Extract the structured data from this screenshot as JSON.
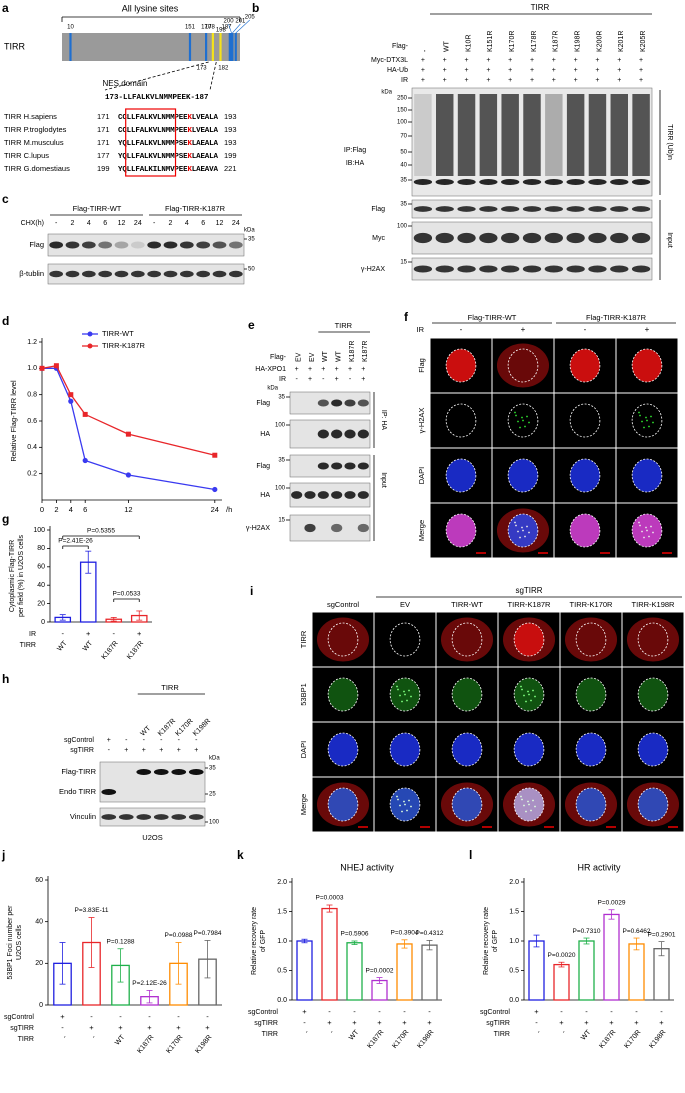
{
  "panel_a": {
    "label": "a",
    "title": "All lysine sites",
    "protein": "TIRR",
    "sites": [
      10,
      151,
      170,
      178,
      187,
      198,
      200,
      201,
      205
    ],
    "site_colors": [
      "#1f6fd0",
      "#1f6fd0",
      "#1f6fd0",
      "#f5e21a",
      "#f5e21a",
      "#1f6fd0",
      "#1f6fd0",
      "#1f6fd0",
      "#1f6fd0"
    ],
    "nes_bounds": [
      173,
      182
    ],
    "nes_label": "NES domain",
    "nes_sequence": "173-LLFALKVLNMMPEEK-187",
    "alignment": [
      {
        "species": "TIRR H.sapiens",
        "start": 171,
        "sequence": "CCLLFALKVLNMMPEEKLVEALA",
        "end": 193
      },
      {
        "species": "TIRR P.troglodytes",
        "start": 171,
        "sequence": "CCLLFALKVLNMMPEEKLVEALA",
        "end": 193
      },
      {
        "species": "TIRR M.musculus",
        "start": 171,
        "sequence": "YQLLFALKVLNMMPSEKLAEALA",
        "end": 193
      },
      {
        "species": "TIRR C.lupus",
        "start": 177,
        "sequence": "YQLLFALKVLNMMPSEKLAEALA",
        "end": 199
      },
      {
        "species": "TIRR G.domestiaus",
        "start": 199,
        "sequence": "YQLLFALKILNMVPEEKLAEAVA",
        "end": 221
      }
    ]
  },
  "panel_b": {
    "label": "b",
    "group": "TIRR",
    "row_names": [
      "Flag-",
      "Myc-DTX3L",
      "HA-Ub",
      "IR"
    ],
    "flag": [
      "-",
      "WT",
      "K10R",
      "K151R",
      "K170R",
      "K178R",
      "K187R",
      "K198R",
      "K200R",
      "K201R",
      "K205R"
    ],
    "myc": [
      "+",
      "+",
      "+",
      "+",
      "+",
      "+",
      "+",
      "+",
      "+",
      "+",
      "+"
    ],
    "ha": [
      "+",
      "+",
      "+",
      "+",
      "+",
      "+",
      "+",
      "+",
      "+",
      "+",
      "+"
    ],
    "ir": [
      "+",
      "+",
      "+",
      "+",
      "+",
      "+",
      "+",
      "+",
      "+",
      "+",
      "+"
    ],
    "kda": "kDa",
    "ip_markers": [
      250,
      150,
      100,
      70,
      50,
      40,
      35
    ],
    "ip_labels": [
      "IP:Flag",
      "IB:HA"
    ],
    "ip_side": "TIRR (Ub)n",
    "input_blots": [
      {
        "name": "Flag",
        "marker": 35
      },
      {
        "name": "Myc",
        "marker": 100
      },
      {
        "name": "γ-H2AX",
        "marker": 15
      }
    ],
    "input_side": "Input"
  },
  "panel_c": {
    "label": "c",
    "groups": [
      "Flag-TIRR-WT",
      "Flag-TIRR-K187R"
    ],
    "row_name": "CHX(h)",
    "times": [
      "-",
      "2",
      "4",
      "6",
      "12",
      "24",
      "-",
      "2",
      "4",
      "6",
      "12",
      "24"
    ],
    "kda": "kDa",
    "blots": [
      {
        "name": "Flag",
        "marker": 35
      },
      {
        "name": "β-tublin",
        "marker": 50
      }
    ]
  },
  "panel_e": {
    "label": "e",
    "group": "TIRR",
    "row_names": [
      "Flag-",
      "HA-XPO1",
      "IR"
    ],
    "flag": [
      "EV",
      "EV",
      "WT",
      "WT",
      "K187R",
      "K187R"
    ],
    "xpo1": [
      "+",
      "+",
      "+",
      "+",
      "+",
      "+"
    ],
    "ir": [
      "-",
      "+",
      "-",
      "+",
      "-",
      "+"
    ],
    "kda": "kDa",
    "blots": [
      {
        "name": "Flag",
        "marker": 35
      },
      {
        "name": "HA",
        "marker": 100
      },
      {
        "name": "Flag",
        "marker": 35
      },
      {
        "name": "HA",
        "marker": 100
      },
      {
        "name": "γ-H2AX",
        "marker": 15
      }
    ],
    "sides": [
      "IP: HA",
      "Input"
    ]
  },
  "panel_f": {
    "label": "f",
    "groups": [
      "Flag-TIRR-WT",
      "Flag-TIRR-K187R"
    ],
    "ir_name": "IR",
    "ir": [
      "-",
      "+",
      "-",
      "+"
    ],
    "rows": [
      "Flag",
      "γ-H2AX",
      "DAPI",
      "Merge"
    ]
  },
  "panel_h": {
    "label": "h",
    "group": "TIRR",
    "tirr": [
      "WT",
      "K187R",
      "K170R",
      "K198R"
    ],
    "row_names": [
      "sgControl",
      "sgTIRR"
    ],
    "sgcontrol": [
      "+",
      "-",
      "-",
      "-",
      "-",
      "-"
    ],
    "sgtirr": [
      "-",
      "+",
      "+",
      "+",
      "+",
      "+"
    ],
    "kda": "kDa",
    "blots": [
      {
        "names": [
          "Flag-TIRR",
          "Endo TIRR"
        ],
        "markers": [
          35,
          25
        ]
      },
      {
        "names": [
          "Vinculin"
        ],
        "markers": [
          100
        ]
      }
    ],
    "cell_line": "U2OS"
  },
  "panel_i": {
    "label": "i",
    "group": "sgTIRR",
    "columns": [
      "sgControl",
      "EV",
      "TIRR-WT",
      "TIRR-K187R",
      "TIRR-K170R",
      "TIRR-K198R"
    ],
    "rows": [
      "TIRR",
      "53BP1",
      "DAPI",
      "Merge"
    ]
  },
  "chart_data": [
    {
      "panel": "d",
      "type": "line",
      "ylabel": "Relative Flag-TIRR level",
      "xlabel": "/h",
      "x": [
        0,
        2,
        4,
        6,
        12,
        24
      ],
      "series": [
        {
          "name": "TIRR-WT",
          "color": "#3a3af0",
          "values": [
            1.0,
            1.0,
            0.75,
            0.3,
            0.19,
            0.08
          ]
        },
        {
          "name": "TIRR-K187R",
          "color": "#e8262a",
          "values": [
            1.0,
            1.02,
            0.8,
            0.65,
            0.5,
            0.34
          ]
        }
      ],
      "xlim": [
        0,
        25
      ],
      "xticks": [
        0,
        2,
        4,
        6,
        12,
        24
      ],
      "ylim": [
        0,
        1.2
      ],
      "yticks": [
        0.2,
        0.4,
        0.6,
        0.8,
        {
          "value": 1,
          "label": "1.0"
        },
        1.2
      ],
      "legend": "upper-left"
    },
    {
      "panel": "g",
      "type": "bar",
      "ylabel": [
        "Cytoplasmic Flag-TIRR",
        "per field (%) in U2OS cells"
      ],
      "category_rows": [
        {
          "name": "IR",
          "labels": [
            "-",
            "+",
            "-",
            "+"
          ]
        },
        {
          "name": "TIRR",
          "labels": [
            "WT",
            "WT",
            "K187R",
            "K187R"
          ]
        }
      ],
      "values": [
        5,
        65,
        3,
        7
      ],
      "errors": [
        3,
        12,
        2,
        5
      ],
      "colors": [
        "#1f1fe0",
        "#1f1fe0",
        "#e8262a",
        "#e8262a"
      ],
      "comparisons": [
        "P=0.5355",
        "P=2.41E-26",
        "P=0.0533"
      ],
      "ylim": [
        0,
        100
      ],
      "yticks": [
        0,
        20,
        40,
        60,
        80,
        100
      ]
    },
    {
      "panel": "j",
      "type": "bar",
      "ylabel": [
        "53BP1 Foci number per",
        "U2OS cells"
      ],
      "category_rows": [
        {
          "name": "sgControl",
          "labels": [
            "+",
            "-",
            "-",
            "-",
            "-",
            "-"
          ]
        },
        {
          "name": "sgTIRR",
          "labels": [
            "-",
            "+",
            "+",
            "+",
            "+",
            "+"
          ]
        },
        {
          "name": "TIRR",
          "labels": [
            "-",
            "-",
            "WT",
            "K187R",
            "K170R",
            "K198R"
          ]
        }
      ],
      "values": [
        20,
        30,
        19,
        4,
        20,
        22
      ],
      "errors": [
        10,
        12,
        8,
        3,
        10,
        9
      ],
      "colors": [
        "#1f1fe0",
        "#e8262a",
        "#1fb04a",
        "#b030d0",
        "#ff8c00",
        "#666666"
      ],
      "annotations": [
        null,
        "P=3.83E-11",
        "P=0.1288",
        "P=2.12E-26",
        "P=0.0988",
        "P=0.7984"
      ],
      "ylim": [
        0,
        60
      ],
      "yticks": [
        0,
        20,
        40,
        60
      ]
    },
    {
      "panel": "k",
      "type": "bar",
      "title": "NHEJ activity",
      "ylabel": [
        "Relative recovery rate",
        "of GFP"
      ],
      "category_rows": [
        {
          "name": "sgControl",
          "labels": [
            "+",
            "-",
            "-",
            "-",
            "-",
            "-"
          ]
        },
        {
          "name": "sgTIRR",
          "labels": [
            "-",
            "+",
            "+",
            "+",
            "+",
            "+"
          ]
        },
        {
          "name": "TIRR",
          "labels": [
            "-",
            "-",
            "WT",
            "K187R",
            "K170R",
            "K198R"
          ]
        }
      ],
      "values": [
        1.0,
        1.55,
        0.97,
        0.33,
        0.95,
        0.93
      ],
      "errors": [
        0.03,
        0.06,
        0.03,
        0.05,
        0.07,
        0.08
      ],
      "colors": [
        "#1f1fe0",
        "#e8262a",
        "#1fb04a",
        "#b030d0",
        "#ff8c00",
        "#666666"
      ],
      "annotations": [
        null,
        "P=0.0003",
        "P=0.5906",
        "P=0.0002",
        "P=0.3904",
        "P=0.4312"
      ],
      "ylim": [
        0,
        2
      ],
      "yticks": [
        {
          "value": 0,
          "label": "0.0"
        },
        0.5,
        {
          "value": 1,
          "label": "1.0"
        },
        1.5,
        {
          "value": 2,
          "label": "2.0"
        }
      ]
    },
    {
      "panel": "l",
      "type": "bar",
      "title": "HR activity",
      "ylabel": [
        "Relative recovery rate",
        "of GFP"
      ],
      "category_rows": [
        {
          "name": "sgControl",
          "labels": [
            "+",
            "-",
            "-",
            "-",
            "-",
            "-"
          ]
        },
        {
          "name": "sgTIRR",
          "labels": [
            "-",
            "+",
            "+",
            "+",
            "+",
            "+"
          ]
        },
        {
          "name": "TIRR",
          "labels": [
            "-",
            "-",
            "WT",
            "K187R",
            "K170R",
            "K198R"
          ]
        }
      ],
      "values": [
        1.0,
        0.6,
        1.0,
        1.45,
        0.95,
        0.87
      ],
      "errors": [
        0.1,
        0.04,
        0.05,
        0.08,
        0.1,
        0.12
      ],
      "colors": [
        "#1f1fe0",
        "#e8262a",
        "#1fb04a",
        "#b030d0",
        "#ff8c00",
        "#666666"
      ],
      "annotations": [
        null,
        "P=0.0020",
        "P=0.7310",
        "P=0.0029",
        "P=0.6462",
        "P=0.2901"
      ],
      "ylim": [
        0,
        2
      ],
      "yticks": [
        {
          "value": 0,
          "label": "0.0"
        },
        0.5,
        {
          "value": 1,
          "label": "1.0"
        },
        1.5,
        {
          "value": 2,
          "label": "2.0"
        }
      ]
    }
  ]
}
